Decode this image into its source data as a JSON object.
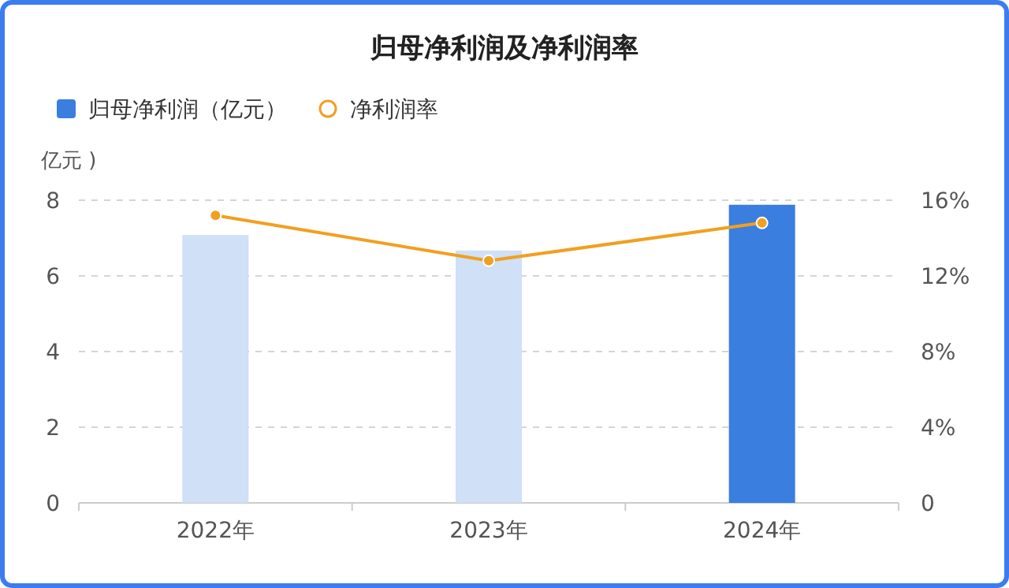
{
  "chart_data": {
    "type": "bar",
    "title": "归母净利润及净利润率",
    "ylabel": "亿元 )",
    "categories": [
      "2022年",
      "2023年",
      "2024年"
    ],
    "series": [
      {
        "name": "归母净利润（亿元）",
        "color": "#3a7ee0",
        "colors": [
          "#cfe0f7",
          "#cfe0f7",
          "#3a7ee0"
        ],
        "values": [
          7.08,
          6.67,
          7.88
        ]
      },
      {
        "name": "净利润率",
        "type": "line",
        "axis": "y2",
        "color": "#f0a020",
        "values": [
          15.2,
          12.8,
          14.8
        ]
      }
    ],
    "ylim": [
      0,
      8
    ],
    "yticks": [
      0,
      2,
      4,
      6,
      8
    ],
    "y2lim": [
      0,
      16
    ],
    "y2ticks": [
      {
        "value": 0,
        "label": "0"
      },
      {
        "value": 4,
        "label": "4%"
      },
      {
        "value": 8,
        "label": "8%"
      },
      {
        "value": 12,
        "label": "12%"
      },
      {
        "value": 16,
        "label": "16%"
      }
    ],
    "grid": "y",
    "legend": "top left",
    "marker": "circle",
    "line_style": "solid"
  }
}
